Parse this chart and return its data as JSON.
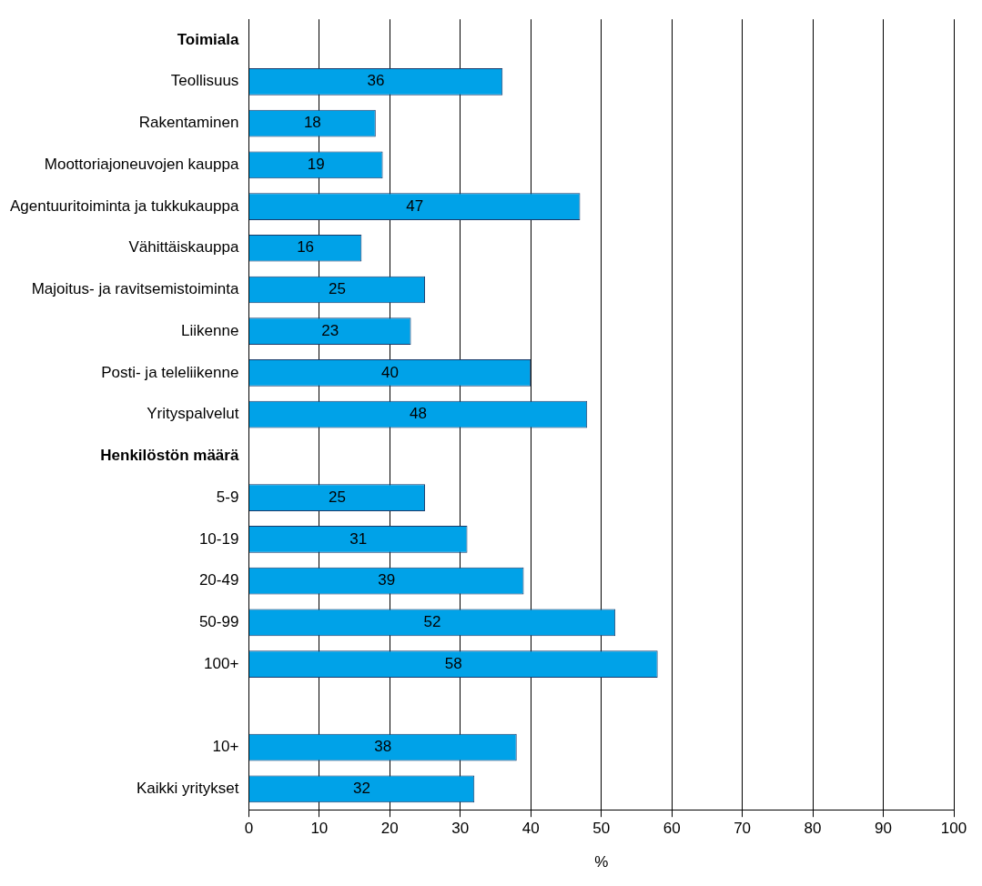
{
  "chart_data": {
    "type": "bar",
    "orientation": "horizontal",
    "xlabel": "%",
    "categories": [
      "Toimiala",
      "Teollisuus",
      "Rakentaminen",
      "Moottoriajoneuvojen kauppa",
      "Agentuuritoiminta ja tukkukauppa",
      "Vähittäiskauppa",
      "Majoitus- ja ravitsemistoiminta",
      "Liikenne",
      "Posti- ja teleliikenne",
      "Yrityspalvelut",
      "Henkilöstön määrä",
      "5-9",
      "10-19",
      "20-49",
      "50-99",
      "100+",
      null,
      "10+",
      "Kaikki yritykset"
    ],
    "values": [
      null,
      36,
      18,
      19,
      47,
      16,
      25,
      23,
      40,
      48,
      null,
      25,
      31,
      39,
      52,
      58,
      null,
      38,
      32
    ],
    "color": "#00a2e8",
    "xlim": [
      0,
      100
    ],
    "xticks": [
      0,
      10,
      20,
      30,
      40,
      50,
      60,
      70,
      80,
      90,
      100
    ],
    "grid": "x",
    "data_labels": true,
    "legend": false
  }
}
